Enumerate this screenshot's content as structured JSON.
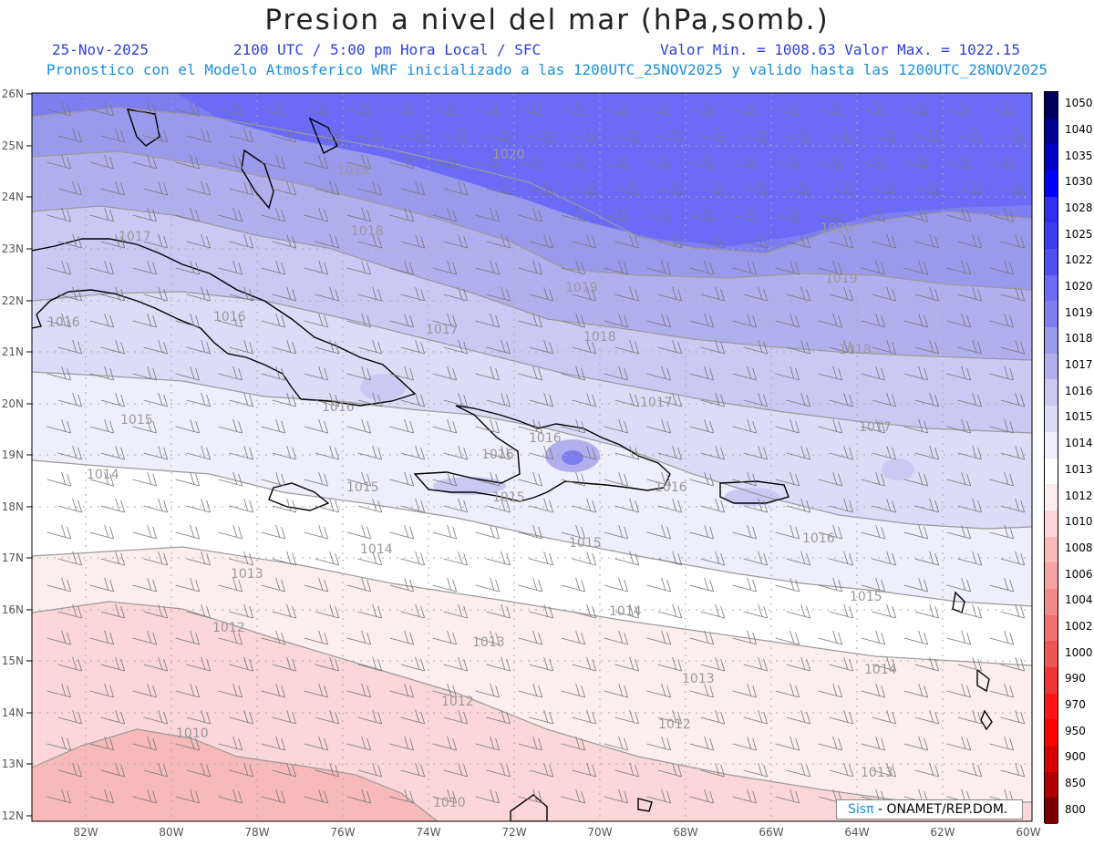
{
  "header": {
    "title": "Presion a nivel del mar (hPa,somb.)",
    "date": "25-Nov-2025",
    "time": "2100 UTC / 5:00 pm Hora Local / SFC",
    "min_max": "Valor Min. = 1008.63  Valor Max. = 1022.15",
    "model_info": "Pronostico con el Modelo Atmosferico WRF inicializado a las 1200UTC_25NOV2025 y valido hasta las  1200UTC_28NOV2025"
  },
  "map": {
    "lat_labels": [
      "26N",
      "25N",
      "24N",
      "23N",
      "22N",
      "21N",
      "20N",
      "19N",
      "18N",
      "17N",
      "16N",
      "15N",
      "14N",
      "13N",
      "12N"
    ],
    "lon_labels": [
      "82W",
      "80W",
      "78W",
      "76W",
      "74W",
      "72W",
      "70W",
      "68W",
      "66W",
      "64W",
      "62W",
      "60W"
    ],
    "contour_labels": [
      {
        "text": "1020"
      },
      {
        "text": "1020"
      },
      {
        "text": "1019"
      },
      {
        "text": "1019"
      },
      {
        "text": "1019"
      },
      {
        "text": "1018"
      },
      {
        "text": "1018"
      },
      {
        "text": "1018"
      },
      {
        "text": "1017"
      },
      {
        "text": "1017"
      },
      {
        "text": "1017"
      },
      {
        "text": "1017"
      },
      {
        "text": "1016"
      },
      {
        "text": "1016"
      },
      {
        "text": "1016"
      },
      {
        "text": "1016"
      },
      {
        "text": "1016"
      },
      {
        "text": "1016"
      },
      {
        "text": "1015"
      },
      {
        "text": "1015"
      },
      {
        "text": "1015"
      },
      {
        "text": "1015"
      },
      {
        "text": "1014"
      },
      {
        "text": "1014"
      },
      {
        "text": "1014"
      },
      {
        "text": "1014"
      },
      {
        "text": "1013"
      },
      {
        "text": "1013"
      },
      {
        "text": "1013"
      },
      {
        "text": "1013"
      },
      {
        "text": "1012"
      },
      {
        "text": "1012"
      },
      {
        "text": "1012"
      },
      {
        "text": "1010"
      },
      {
        "text": "1010"
      },
      {
        "text": "1015"
      },
      {
        "text": "1016"
      }
    ],
    "colors": {
      "c1010": "#f8b9b9",
      "c1012": "#fcd7d7",
      "c1013": "#fdeeee",
      "c1014": "#ffffff",
      "c1015": "#eeeefc",
      "c1016": "#dcdcf8",
      "c1017": "#c9c9f4",
      "c1018": "#b0b0ef",
      "c1019": "#9a9aec",
      "c1020": "#7e7ef1",
      "c1022": "#6b6bf8"
    }
  },
  "colorbar": {
    "labels": [
      "1050",
      "1040",
      "1035",
      "1030",
      "1028",
      "1025",
      "1022",
      "1020",
      "1019",
      "1018",
      "1017",
      "1016",
      "1015",
      "1014",
      "1013",
      "1012",
      "1010",
      "1008",
      "1006",
      "1004",
      "1002",
      "1000",
      "990",
      "970",
      "950",
      "900",
      "850",
      "800"
    ],
    "colors": [
      "#00005a",
      "#000091",
      "#0000c8",
      "#0000ff",
      "#2e2ef7",
      "#3c3cf0",
      "#5050f0",
      "#6b6bf8",
      "#7e7ef1",
      "#9a9aec",
      "#b0b0ef",
      "#c9c9f4",
      "#dcdcf8",
      "#eeeefc",
      "#ffffff",
      "#fdeeee",
      "#fcd7d7",
      "#f8b9b9",
      "#f5a3a3",
      "#f08a8a",
      "#f07070",
      "#ee5555",
      "#f03535",
      "#ff1515",
      "#ff0000",
      "#d80000",
      "#b00000",
      "#7a0000"
    ]
  },
  "credit": {
    "prefix": "Sis",
    "pi": "π",
    "suffix": "- ONAMET/REP.DOM."
  }
}
